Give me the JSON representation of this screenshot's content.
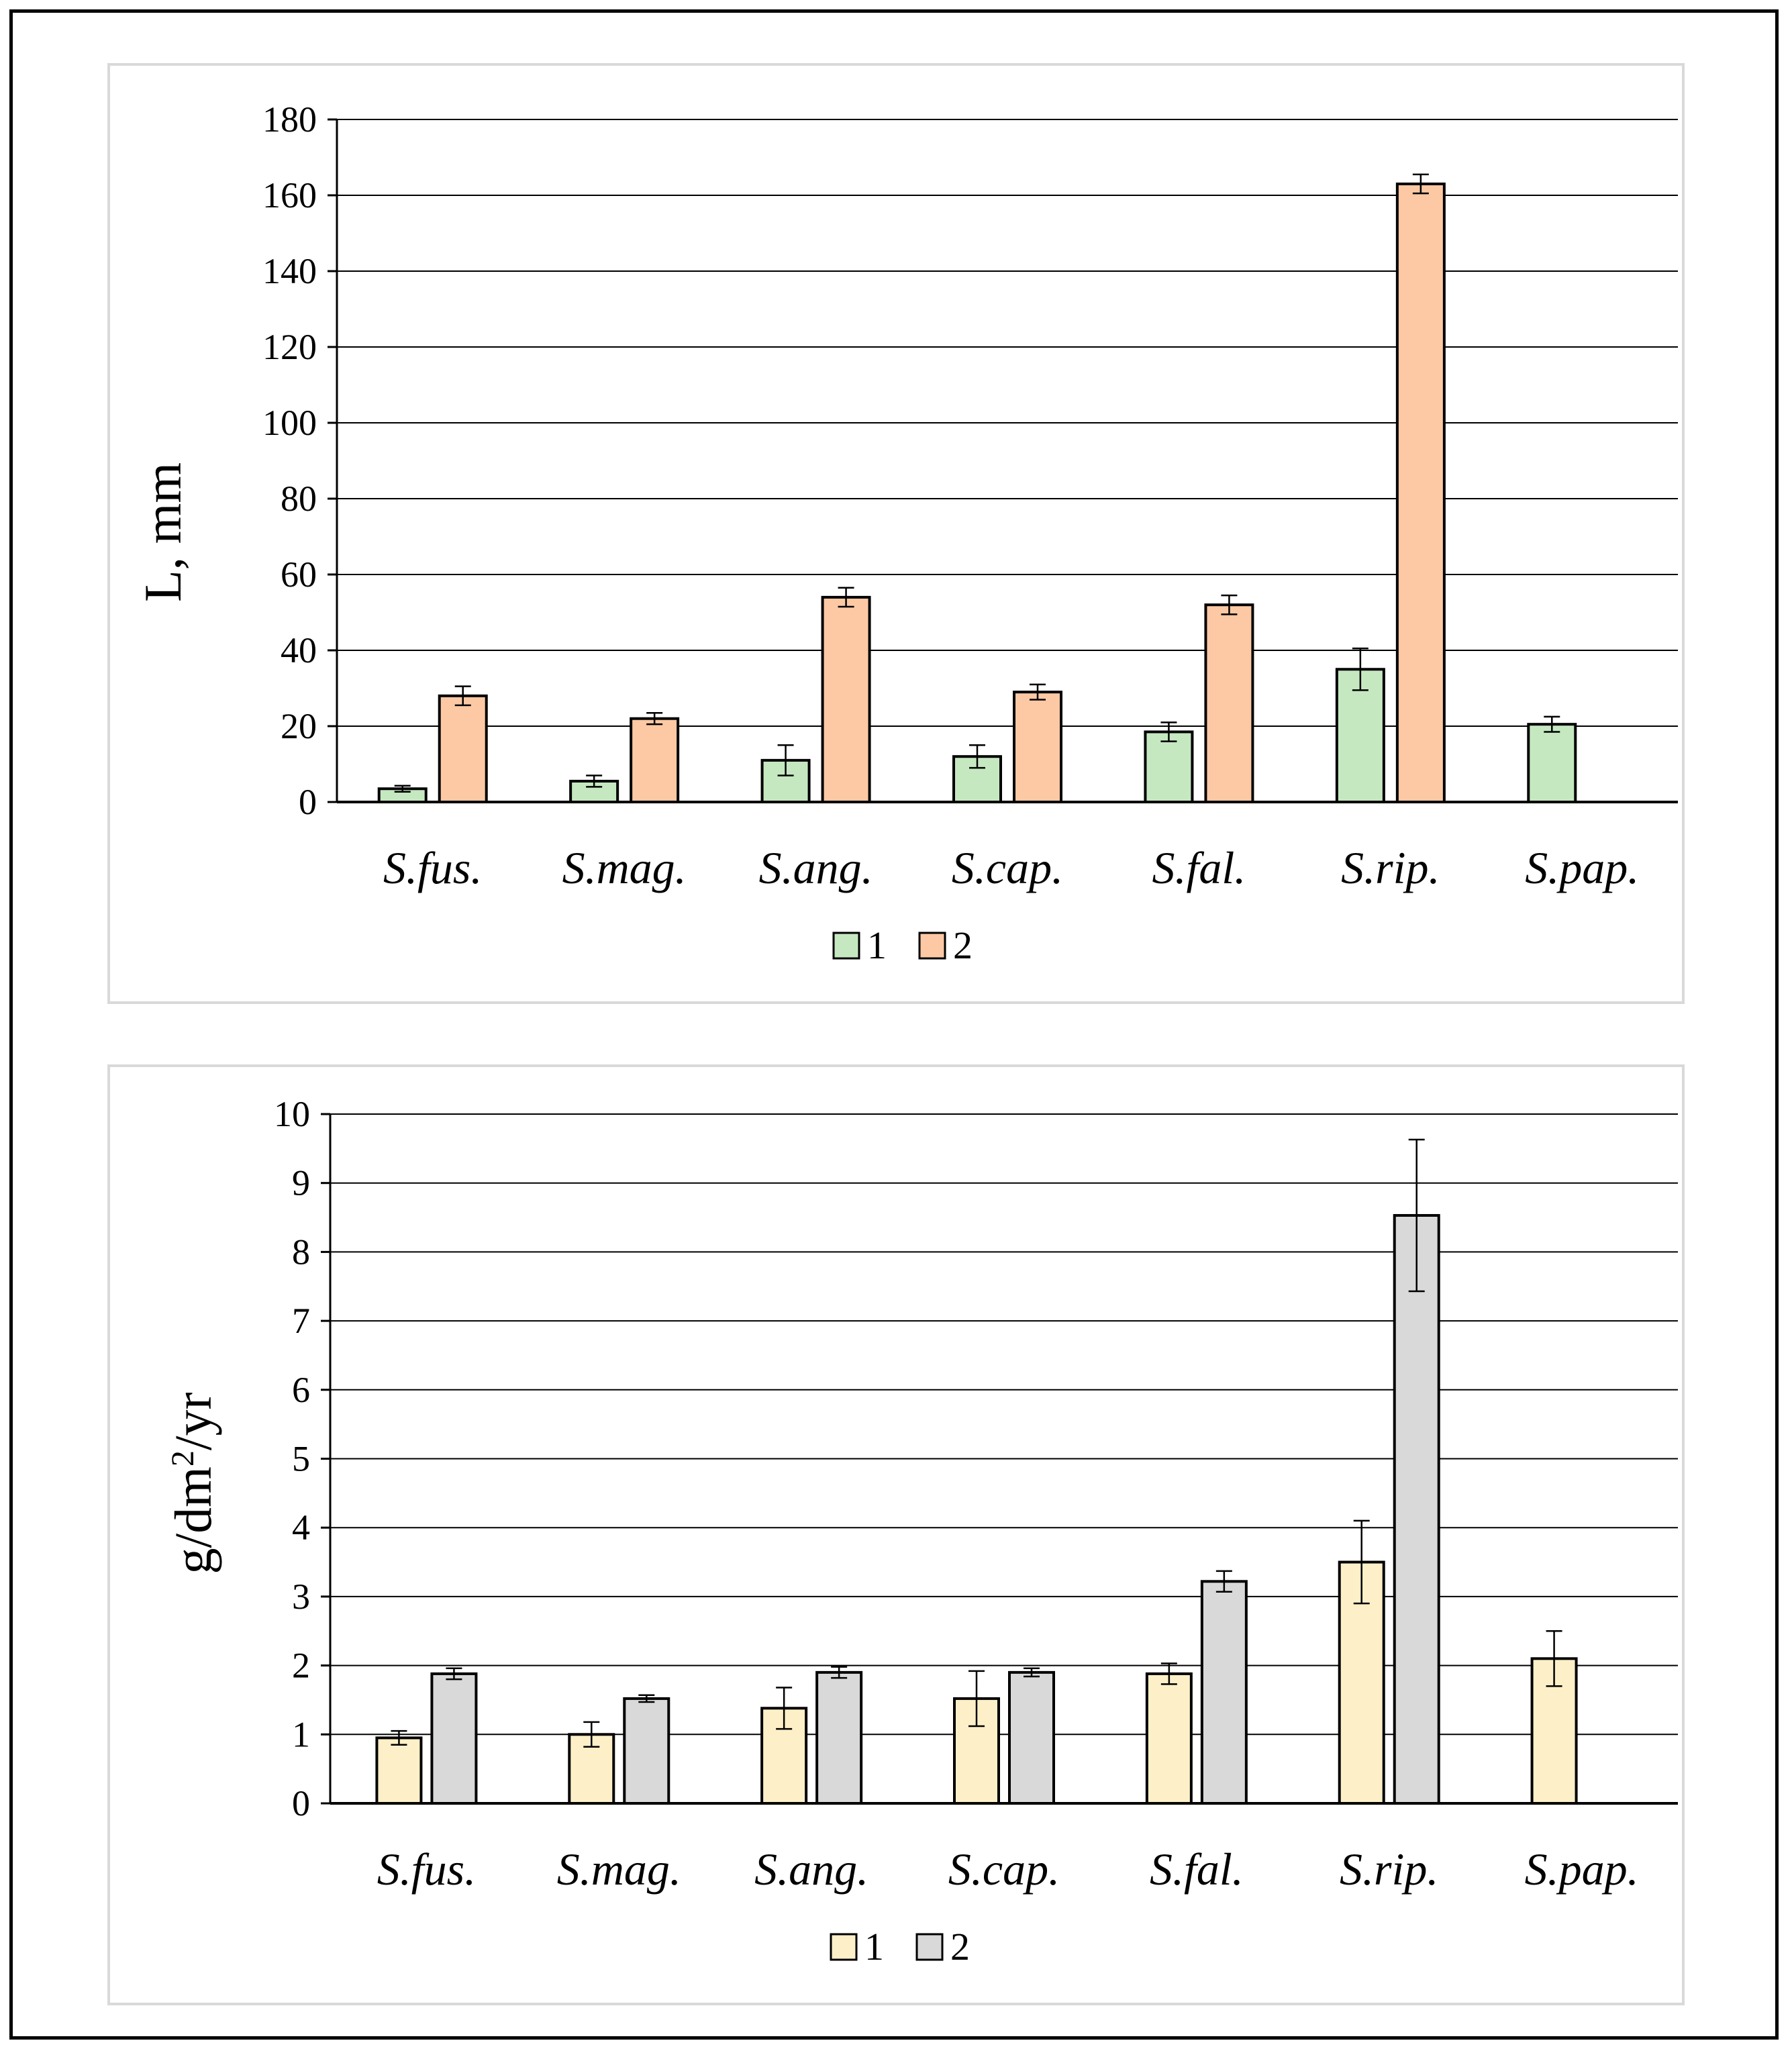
{
  "chart_data": [
    {
      "type": "bar",
      "categories": [
        "S.fus.",
        "S.mag.",
        "S.ang.",
        "S.cap.",
        "S.fal.",
        "S.rip.",
        "S.pap."
      ],
      "series": [
        {
          "name": "1",
          "color": "#c5e8c0",
          "values": [
            3.5,
            5.5,
            11,
            12,
            18.5,
            35,
            20.5
          ],
          "errors": [
            0.8,
            1.5,
            4,
            3,
            2.5,
            5.5,
            2
          ]
        },
        {
          "name": "2",
          "color": "#fcc9a4",
          "values": [
            28,
            22,
            54,
            29,
            52,
            163,
            null
          ],
          "errors": [
            2.5,
            1.5,
            2.5,
            2,
            2.5,
            2.5,
            null
          ]
        }
      ],
      "ylabel": "L, mm",
      "ylim": [
        0,
        180
      ],
      "yticks": [
        "0",
        "20",
        "40",
        "60",
        "80",
        "100",
        "120",
        "140",
        "160",
        "180"
      ],
      "grid": true,
      "legend": "bottom"
    },
    {
      "type": "bar",
      "categories": [
        "S.fus.",
        "S.mag.",
        "S.ang.",
        "S.cap.",
        "S.fal.",
        "S.rip.",
        "S.pap."
      ],
      "series": [
        {
          "name": "1",
          "color": "#fdf0c8",
          "values": [
            0.95,
            1.0,
            1.38,
            1.52,
            1.88,
            3.5,
            2.1
          ],
          "errors": [
            0.1,
            0.18,
            0.3,
            0.4,
            0.15,
            0.6,
            0.4
          ]
        },
        {
          "name": "2",
          "color": "#d9d9d9",
          "values": [
            1.88,
            1.52,
            1.9,
            1.9,
            3.22,
            8.53,
            null
          ],
          "errors": [
            0.08,
            0.05,
            0.08,
            0.06,
            0.15,
            1.1,
            null
          ]
        }
      ],
      "ylabel_main": "g/dm",
      "ylabel_sup": "2",
      "ylabel_tail": "/yr",
      "ylim": [
        0,
        10
      ],
      "yticks": [
        "0",
        "1",
        "2",
        "3",
        "4",
        "5",
        "6",
        "7",
        "8",
        "9",
        "10"
      ],
      "grid": true,
      "legend": "bottom"
    }
  ]
}
